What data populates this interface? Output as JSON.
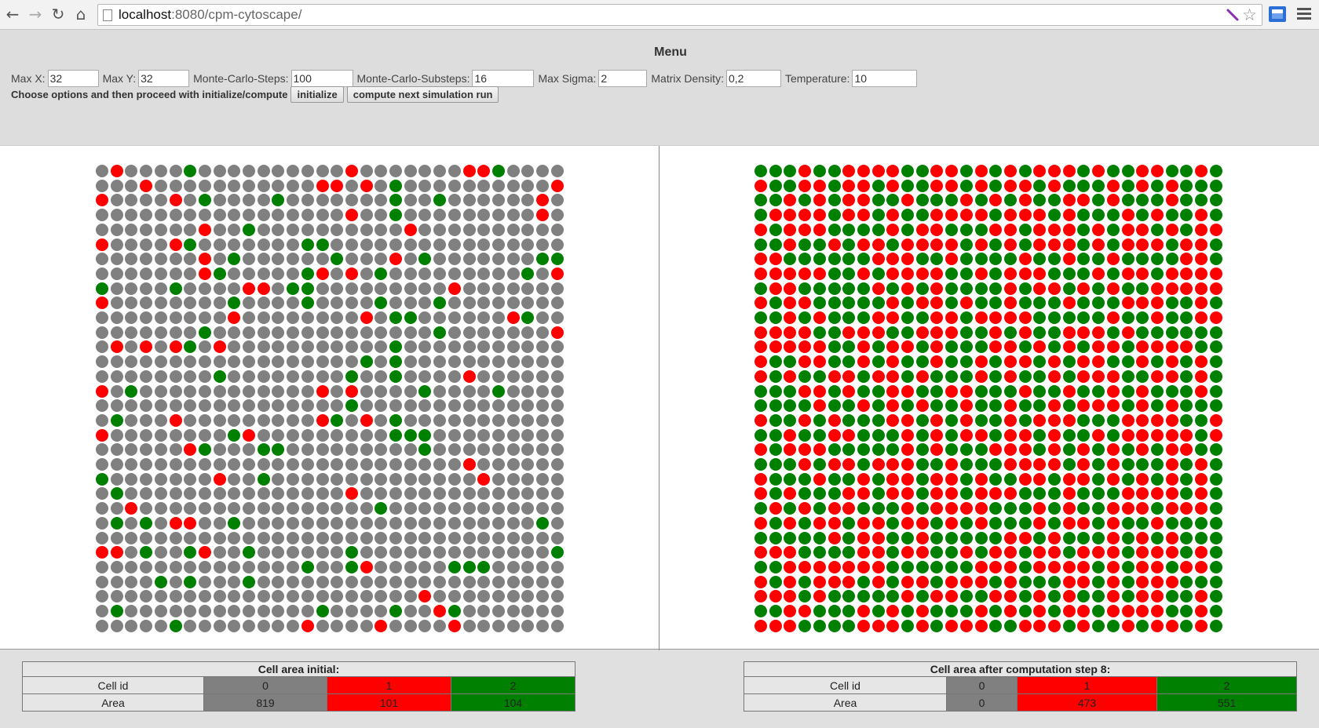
{
  "browser": {
    "url_host": "localhost",
    "url_rest": ":8080/cpm-cytoscape/"
  },
  "menu": {
    "title": "Menu",
    "fields": [
      {
        "label": "Max X:",
        "value": "32"
      },
      {
        "label": "Max Y:",
        "value": "32"
      },
      {
        "label": "Monte-Carlo-Steps:",
        "value": "100"
      },
      {
        "label": "Monte-Carlo-Substeps:",
        "value": "16"
      },
      {
        "label": "Max Sigma:",
        "value": "2"
      },
      {
        "label": "Matrix Density:",
        "value": "0,2"
      },
      {
        "label": "Temperature:",
        "value": "10"
      }
    ],
    "hint": "Choose options and then proceed with initialize/compute",
    "initialize_label": "initialize",
    "compute_label": "compute next simulation run"
  },
  "colors": {
    "cell_0": "#808080",
    "cell_1": "#ff0000",
    "cell_2": "#008000"
  },
  "grid_initial": {
    "rows": 32,
    "cols": 32,
    "cells": [
      "01000020000000000100000001120000",
      "00010000000000011010200000000001",
      "10000102000020000000200200000010",
      "00000000000000000100200000000010",
      "00000001002000000000010000000000",
      "10000120000000220000000000000000",
      "00000001020000002000102000000022",
      "00000001200000210102000000000201",
      "20000200001102200000000010000000",
      "10000000020000200002000200000000",
      "00000000010000000010220000001200",
      "00000002000000000000000200000001",
      "01010120100000000000200000000000",
      "00000000000000000020200000000000",
      "00000000200000000200200001000000",
      "10200000000000010100002000020000",
      "00000000000000000200000000000000",
      "02000100000000012010200000000000",
      "10000000021000000000222000000000",
      "00000012000220000000002000000000",
      "00000000000000000000000001000000",
      "20000000100200000000000000100000",
      "02000000000000000100000000000000",
      "00100000000000000002000000000000",
      "02020110020000000000000000000020",
      "00000000000000000000000000000000",
      "11020021002000000200000000000002",
      "00000000000000200210000022200000",
      "00002020002000000000000000000000",
      "00000000000000000000001000000000",
      "02000000000000020000200120000000",
      "00000200000000100001000010000000"
    ]
  },
  "grid_final": {
    "rows": 32,
    "cols": 32,
    "cells": [
      "22212211112211212121112122112212",
      "12211211212211212112122212121222",
      "22121211221222121212211212221222",
      "21111211212211112111212221212212",
      "12111222212112221121112121121211",
      "22122121121111212121112121112112",
      "11222222111221222212212212222112",
      "11111221211112212111222121121111",
      "21122222121212222121121212211111",
      "12112222212112122122212221112212",
      "22121222112211211112222212212211",
      "11112211122111221212211121222222",
      "11111221211212221121212112111122",
      "12211221212212212112121122121212",
      "12122112112122212122121112211212",
      "22211212211221122212212212122212",
      "22221221212122122122121112121222",
      "12212122211212122121112221111221",
      "22122112221212112112122121111121",
      "12111222221212221112121212121122",
      "22212112111221222111121212221212",
      "12221221211211212211211212121212",
      "12122211211211211122212221111212",
      "21212112221211112221212211121112",
      "12121121121121212221211212212222",
      "22222121122122222112122212121222",
      "11122221121122121121121112111212",
      "22111111122222211121111212112112",
      "12121112121121112122211212111222",
      "11121222221211221121212212112212",
      "22112221212122212121211211112212",
      "11122221112121112211121221211212"
    ]
  },
  "table_initial": {
    "title": "Cell area initial:",
    "row_cellid_label": "Cell id",
    "row_area_label": "Area",
    "ids": [
      "0",
      "1",
      "2"
    ],
    "areas": [
      "819",
      "101",
      "104"
    ]
  },
  "table_final": {
    "title": "Cell area after computation step 8:",
    "row_cellid_label": "Cell id",
    "row_area_label": "Area",
    "ids": [
      "0",
      "1",
      "2"
    ],
    "areas": [
      "0",
      "473",
      "551"
    ]
  }
}
